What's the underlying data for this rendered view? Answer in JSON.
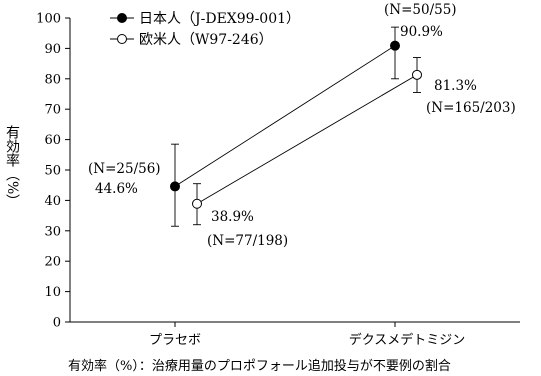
{
  "chart_data": {
    "type": "line",
    "categories": [
      "プラセボ",
      "デクスメデトミジン"
    ],
    "ylabel": "有効率（%）",
    "ylim": [
      0,
      100
    ],
    "yticks": [
      0,
      10,
      20,
      30,
      40,
      50,
      60,
      70,
      80,
      90,
      100
    ],
    "caption": "有効率（%）：治療用量のプロポフォール追加投与が不要例の割合",
    "series": [
      {
        "name": "日本人（J-DEX99-001）",
        "marker": "filled-circle",
        "color": "#000000",
        "values": [
          44.6,
          90.9
        ],
        "error_low": [
          31.5,
          80.0
        ],
        "error_high": [
          58.5,
          97.0
        ],
        "value_labels": [
          "44.6%",
          "90.9%"
        ],
        "n_labels": [
          "(N=25/56)",
          "(N=50/55)"
        ]
      },
      {
        "name": "欧米人（W97-246）",
        "marker": "open-circle",
        "color": "#000000",
        "values": [
          38.9,
          81.3
        ],
        "error_low": [
          32.0,
          75.5
        ],
        "error_high": [
          45.5,
          87.0
        ],
        "value_labels": [
          "38.9%",
          "81.3%"
        ],
        "n_labels": [
          "(N=77/198)",
          "(N=165/203)"
        ]
      }
    ]
  }
}
